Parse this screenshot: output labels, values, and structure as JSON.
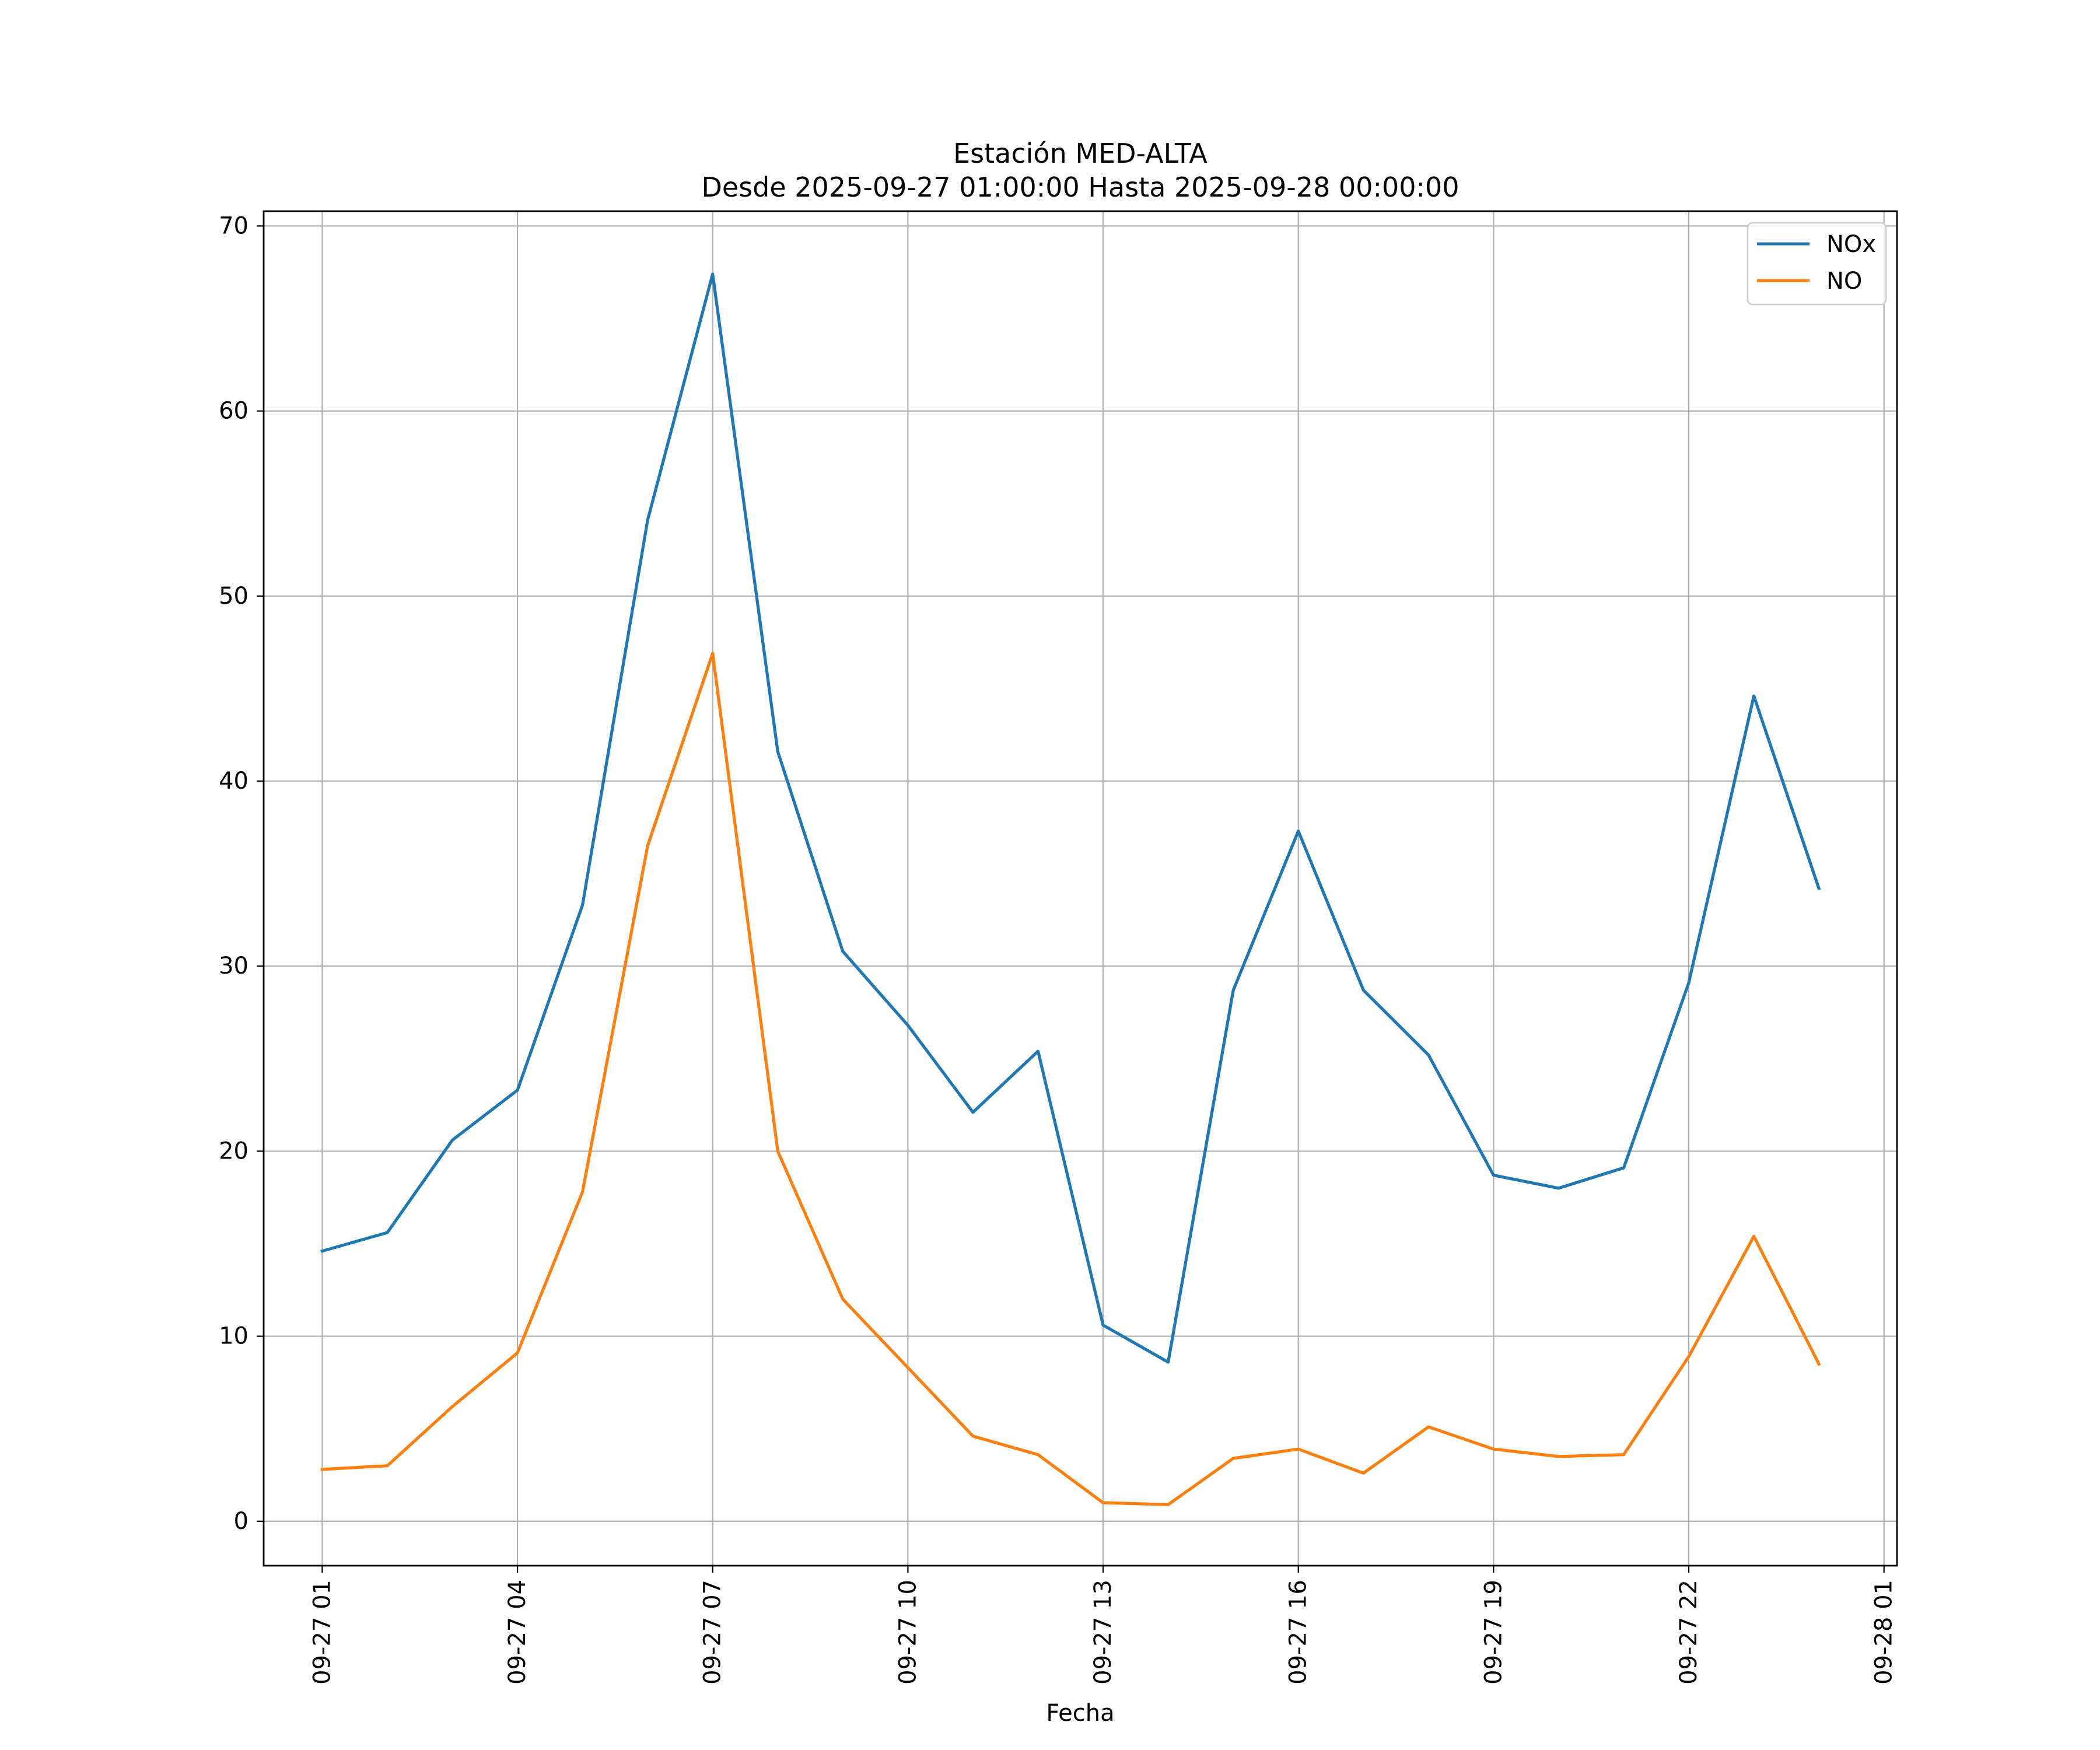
{
  "chart_data": {
    "type": "line",
    "title": "Estación MED-ALTA",
    "subtitle": "Desde 2025-09-27 01:00:00 Hasta 2025-09-28 00:00:00",
    "xlabel": "Fecha",
    "ylabel": "",
    "x_hours": [
      1,
      2,
      3,
      4,
      5,
      6,
      7,
      8,
      9,
      10,
      11,
      12,
      13,
      14,
      15,
      16,
      17,
      18,
      19,
      20,
      21,
      22,
      23,
      24
    ],
    "xlim": [
      0.1,
      25.2
    ],
    "ylim": [
      -2.4,
      70.8
    ],
    "grid": true,
    "legend_position": "top-right",
    "x_ticks": [
      {
        "hour": 1,
        "label": "09-27 01"
      },
      {
        "hour": 4,
        "label": "09-27 04"
      },
      {
        "hour": 7,
        "label": "09-27 07"
      },
      {
        "hour": 10,
        "label": "09-27 10"
      },
      {
        "hour": 13,
        "label": "09-27 13"
      },
      {
        "hour": 16,
        "label": "09-27 16"
      },
      {
        "hour": 19,
        "label": "09-27 19"
      },
      {
        "hour": 22,
        "label": "09-27 22"
      },
      {
        "hour": 25,
        "label": "09-28 01"
      }
    ],
    "y_ticks": [
      {
        "value": 0,
        "label": "0"
      },
      {
        "value": 10,
        "label": "10"
      },
      {
        "value": 20,
        "label": "20"
      },
      {
        "value": 30,
        "label": "30"
      },
      {
        "value": 40,
        "label": "40"
      },
      {
        "value": 50,
        "label": "50"
      },
      {
        "value": 60,
        "label": "60"
      },
      {
        "value": 70,
        "label": "70"
      }
    ],
    "series": [
      {
        "name": "NOx",
        "color": "#1f77b4",
        "values": [
          14.6,
          15.6,
          20.6,
          23.3,
          33.3,
          54.1,
          67.4,
          41.6,
          30.8,
          26.8,
          22.1,
          25.4,
          10.6,
          8.6,
          28.7,
          37.3,
          28.7,
          25.2,
          18.7,
          18.0,
          19.1,
          29.1,
          44.6,
          34.2
        ]
      },
      {
        "name": "NO",
        "color": "#ff7f0e",
        "values": [
          2.8,
          3.0,
          6.2,
          9.1,
          17.8,
          36.5,
          46.9,
          20.0,
          12.0,
          8.3,
          4.6,
          3.6,
          1.0,
          0.9,
          3.4,
          3.9,
          2.6,
          5.1,
          3.9,
          3.5,
          3.6,
          8.9,
          15.4,
          8.5
        ]
      }
    ]
  }
}
